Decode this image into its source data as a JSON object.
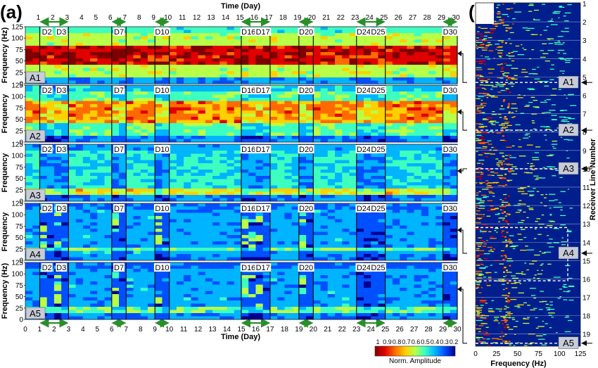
{
  "figure": {
    "panel_a_label": "(a)",
    "panel_b_label": "(b)",
    "top_axis_title": "Time (Day)",
    "bottom_axis_title": "Time (Day)",
    "y_axis_title": "Frequency",
    "y_axis_title_units": "Frequency (Hz)",
    "b_x_axis_title": "Frequency (Hz)",
    "b_y_axis_title": "Receiver Line Number",
    "colorbar_title": "Norm. Amplitude"
  },
  "chart_data": [
    {
      "type": "heatmap",
      "panel": "a",
      "title": "",
      "xlabel": "Time (Day)",
      "ylabel": "Frequency (Hz)",
      "xlim": [
        0,
        30
      ],
      "ylim": [
        0,
        125
      ],
      "x_ticks": [
        0,
        1,
        2,
        3,
        4,
        5,
        6,
        7,
        8,
        9,
        10,
        11,
        12,
        13,
        14,
        15,
        16,
        17,
        18,
        19,
        20,
        21,
        22,
        23,
        24,
        25,
        26,
        27,
        28,
        29,
        30
      ],
      "y_ticks": [
        0,
        25,
        50,
        75,
        100,
        125
      ],
      "subplots": [
        {
          "name": "A1",
          "level": "high",
          "dominant_band": [
            45,
            85
          ]
        },
        {
          "name": "A2",
          "level": "mid",
          "dominant_band": [
            40,
            90
          ]
        },
        {
          "name": "A3",
          "level": "mid-low",
          "dominant_band": [
            15,
            30
          ]
        },
        {
          "name": "A4",
          "level": "low",
          "dominant_band": [
            18,
            28
          ]
        },
        {
          "name": "A5",
          "level": "low",
          "dominant_band": [
            15,
            28
          ]
        }
      ],
      "day_markers": [
        {
          "label": "D2",
          "day": 1.5
        },
        {
          "label": "D3",
          "day": 2.5
        },
        {
          "label": "D7",
          "day": 6.5
        },
        {
          "label": "D10",
          "day": 9.5
        },
        {
          "label": "D16",
          "day": 15.5
        },
        {
          "label": "D17",
          "day": 16.5
        },
        {
          "label": "D20",
          "day": 19.5
        },
        {
          "label": "D24",
          "day": 23.5
        },
        {
          "label": "D25",
          "day": 24.5
        },
        {
          "label": "D30",
          "day": 29.5
        }
      ],
      "weekend_spans": [
        [
          1,
          3
        ],
        [
          6,
          7
        ],
        [
          9,
          10
        ],
        [
          15,
          17
        ],
        [
          19,
          20
        ],
        [
          23,
          25
        ],
        [
          29,
          30
        ]
      ],
      "colorbar": {
        "label": "Norm. Amplitude",
        "ticks": [
          1,
          0.9,
          0.8,
          0.7,
          0.6,
          0.5,
          0.4,
          0.3,
          0.2
        ],
        "colors": [
          "#7f0000",
          "#e00000",
          "#ff6a00",
          "#ffd000",
          "#b8ff48",
          "#3cffc0",
          "#00b4ff",
          "#0050ff",
          "#00008f"
        ]
      }
    },
    {
      "type": "heatmap",
      "panel": "b",
      "title": "",
      "xlabel": "Frequency (Hz)",
      "ylabel": "Receiver Line Number",
      "xlim": [
        0,
        125
      ],
      "x_ticks": [
        0,
        25,
        50,
        75,
        100,
        125
      ],
      "y_ticks": [
        1,
        2,
        3,
        4,
        5,
        6,
        7,
        8,
        9,
        10,
        11,
        12,
        13,
        14,
        15,
        16,
        17,
        18,
        19
      ],
      "area_labels": [
        {
          "name": "A1",
          "line": 5.3
        },
        {
          "name": "A2",
          "line": 7.9
        },
        {
          "name": "A3",
          "line": 10.0
        },
        {
          "name": "A4",
          "line": 14.6
        },
        {
          "name": "A5",
          "line": 19.5
        }
      ]
    }
  ]
}
